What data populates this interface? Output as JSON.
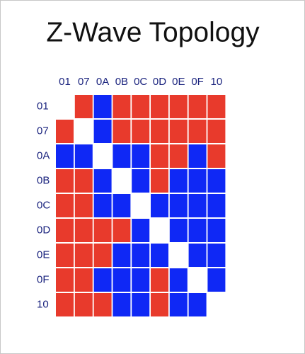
{
  "title": "Z-Wave Topology",
  "nodes": [
    "01",
    "07",
    "0A",
    "0B",
    "0C",
    "0D",
    "0E",
    "0F",
    "10"
  ],
  "matrix": [
    [
      null,
      "#e83a2c",
      "#0f28f5",
      "#e83a2c",
      "#e83a2c",
      "#e83a2c",
      "#e83a2c",
      "#e83a2c",
      "#e83a2c"
    ],
    [
      "#e83a2c",
      null,
      "#0f28f5",
      "#e83a2c",
      "#e83a2c",
      "#e83a2c",
      "#e83a2c",
      "#e83a2c",
      "#e83a2c"
    ],
    [
      "#0f28f5",
      "#0f28f5",
      null,
      "#0f28f5",
      "#0f28f5",
      "#e83a2c",
      "#e83a2c",
      "#0f28f5",
      "#e83a2c"
    ],
    [
      "#e83a2c",
      "#e83a2c",
      "#0f28f5",
      null,
      "#0f28f5",
      "#e83a2c",
      "#0f28f5",
      "#0f28f5",
      "#0f28f5"
    ],
    [
      "#e83a2c",
      "#e83a2c",
      "#0f28f5",
      "#0f28f5",
      null,
      "#0f28f5",
      "#0f28f5",
      "#0f28f5",
      "#0f28f5"
    ],
    [
      "#e83a2c",
      "#e83a2c",
      "#e83a2c",
      "#e83a2c",
      "#0f28f5",
      null,
      "#0f28f5",
      "#0f28f5",
      "#0f28f5"
    ],
    [
      "#e83a2c",
      "#e83a2c",
      "#e83a2c",
      "#0f28f5",
      "#0f28f5",
      "#0f28f5",
      null,
      "#0f28f5",
      "#0f28f5"
    ],
    [
      "#e83a2c",
      "#e83a2c",
      "#0f28f5",
      "#0f28f5",
      "#0f28f5",
      "#e83a2c",
      "#0f28f5",
      null,
      "#0f28f5"
    ],
    [
      "#e83a2c",
      "#e83a2c",
      "#e83a2c",
      "#0f28f5",
      "#0f28f5",
      "#e83a2c",
      "#0f28f5",
      "#0f28f5",
      null
    ]
  ]
}
